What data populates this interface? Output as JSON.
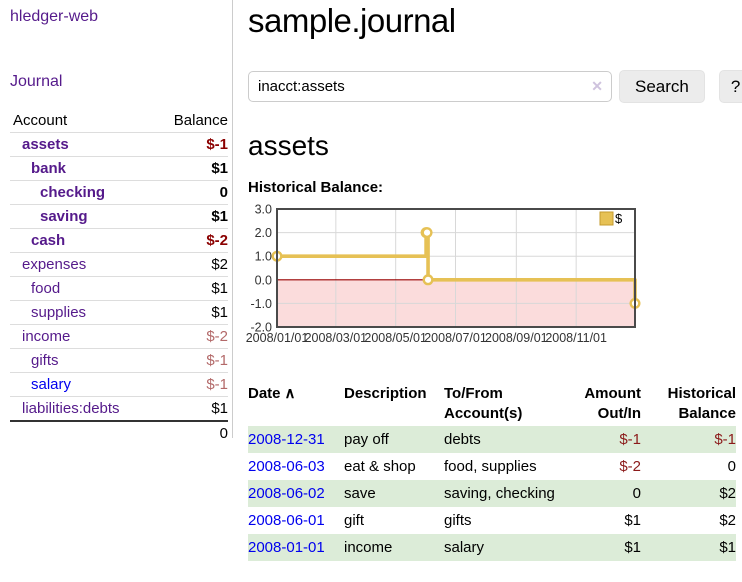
{
  "sidebar": {
    "brand": "hledger-web",
    "journal_link": "Journal",
    "accounts_table": {
      "headers": {
        "account": "Account",
        "balance": "Balance"
      },
      "rows": [
        {
          "label": "assets",
          "balance": "$-1",
          "depth": 1,
          "emph": true,
          "link_color": "purple",
          "balance_color": "negstrong"
        },
        {
          "label": "bank",
          "balance": "$1",
          "depth": 2,
          "emph": true,
          "link_color": "purple",
          "balance_color": "pos"
        },
        {
          "label": "checking",
          "balance": "0",
          "depth": 3,
          "emph": true,
          "link_color": "purple",
          "balance_color": "pos"
        },
        {
          "label": "saving",
          "balance": "$1",
          "depth": 3,
          "emph": true,
          "link_color": "purple",
          "balance_color": "pos"
        },
        {
          "label": "cash",
          "balance": "$-2",
          "depth": 2,
          "emph": true,
          "link_color": "purple",
          "balance_color": "negstrong"
        },
        {
          "label": "expenses",
          "balance": "$2",
          "depth": 1,
          "emph": false,
          "link_color": "purple",
          "balance_color": "pos"
        },
        {
          "label": "food",
          "balance": "$1",
          "depth": 2,
          "emph": false,
          "link_color": "purple",
          "balance_color": "pos"
        },
        {
          "label": "supplies",
          "balance": "$1",
          "depth": 2,
          "emph": false,
          "link_color": "purple",
          "balance_color": "pos"
        },
        {
          "label": "income",
          "balance": "$-2",
          "depth": 1,
          "emph": false,
          "link_color": "purple",
          "balance_color": "negsoft"
        },
        {
          "label": "gifts",
          "balance": "$-1",
          "depth": 2,
          "emph": false,
          "link_color": "purple",
          "balance_color": "negsoft"
        },
        {
          "label": "salary",
          "balance": "$-1",
          "depth": 2,
          "emph": false,
          "link_color": "blue",
          "balance_color": "negsoft"
        },
        {
          "label": "liabilities:debts",
          "balance": "$1",
          "depth": 1,
          "emph": false,
          "link_color": "purple",
          "balance_color": "pos"
        }
      ],
      "total": "0"
    }
  },
  "main": {
    "title": "sample.journal",
    "search": {
      "value": "inacct:assets",
      "clear_icon": "✕",
      "search_button": "Search",
      "help_button": "?"
    },
    "account_heading": "assets",
    "chart_heading": "Historical Balance:",
    "register_table": {
      "headers": {
        "date": "Date",
        "sort_icon": "∧",
        "description": "Description",
        "accounts": "To/From Account(s)",
        "amount": "Amount Out/In",
        "balance": "Historical Balance"
      },
      "rows": [
        {
          "date": "2008-12-31",
          "description": "pay off",
          "accounts": "debts",
          "amount": "$-1",
          "amount_neg": true,
          "balance": "$-1",
          "balance_neg": true
        },
        {
          "date": "2008-06-03",
          "description": "eat & shop",
          "accounts": "food, supplies",
          "amount": "$-2",
          "amount_neg": true,
          "balance": "0",
          "balance_neg": false
        },
        {
          "date": "2008-06-02",
          "description": "save",
          "accounts": "saving, checking",
          "amount": "0",
          "amount_neg": false,
          "balance": "$2",
          "balance_neg": false
        },
        {
          "date": "2008-06-01",
          "description": "gift",
          "accounts": "gifts",
          "amount": "$1",
          "amount_neg": false,
          "balance": "$2",
          "balance_neg": false
        },
        {
          "date": "2008-01-01",
          "description": "income",
          "accounts": "salary",
          "amount": "$1",
          "amount_neg": false,
          "balance": "$1",
          "balance_neg": false
        }
      ]
    }
  },
  "chart_data": {
    "type": "line",
    "style": "step",
    "title": "Historical Balance",
    "legend": "$",
    "legend_position": "top-right",
    "grid": true,
    "x_start": "2008-01-01",
    "x_end": "2008-12-31",
    "ylim": [
      -2.0,
      3.0
    ],
    "yticks": [
      "3.0",
      "2.0",
      "1.0",
      "0.0",
      "-1.0",
      "-2.0"
    ],
    "xticks": [
      {
        "date": "2008-01-01",
        "label": "2008/01/01"
      },
      {
        "date": "2008-03-01",
        "label": "2008/03/01"
      },
      {
        "date": "2008-05-01",
        "label": "2008/05/01"
      },
      {
        "date": "2008-07-01",
        "label": "2008/07/01"
      },
      {
        "date": "2008-09-01",
        "label": "2008/09/01"
      },
      {
        "date": "2008-11-01",
        "label": "2008/11/01"
      }
    ],
    "points": [
      {
        "date": "2008-01-01",
        "value": 1
      },
      {
        "date": "2008-06-01",
        "value": 2
      },
      {
        "date": "2008-06-02",
        "value": 2
      },
      {
        "date": "2008-06-03",
        "value": 0
      },
      {
        "date": "2008-12-31",
        "value": -1
      }
    ],
    "colors": {
      "line": "#e6c155",
      "marker_fill": "#ffffff",
      "negative_area": "#fbdcdc",
      "zero_line": "#990000",
      "grid": "#d8d8d8",
      "border": "#4a4a4a",
      "legend_border": "#c49b2e"
    }
  }
}
